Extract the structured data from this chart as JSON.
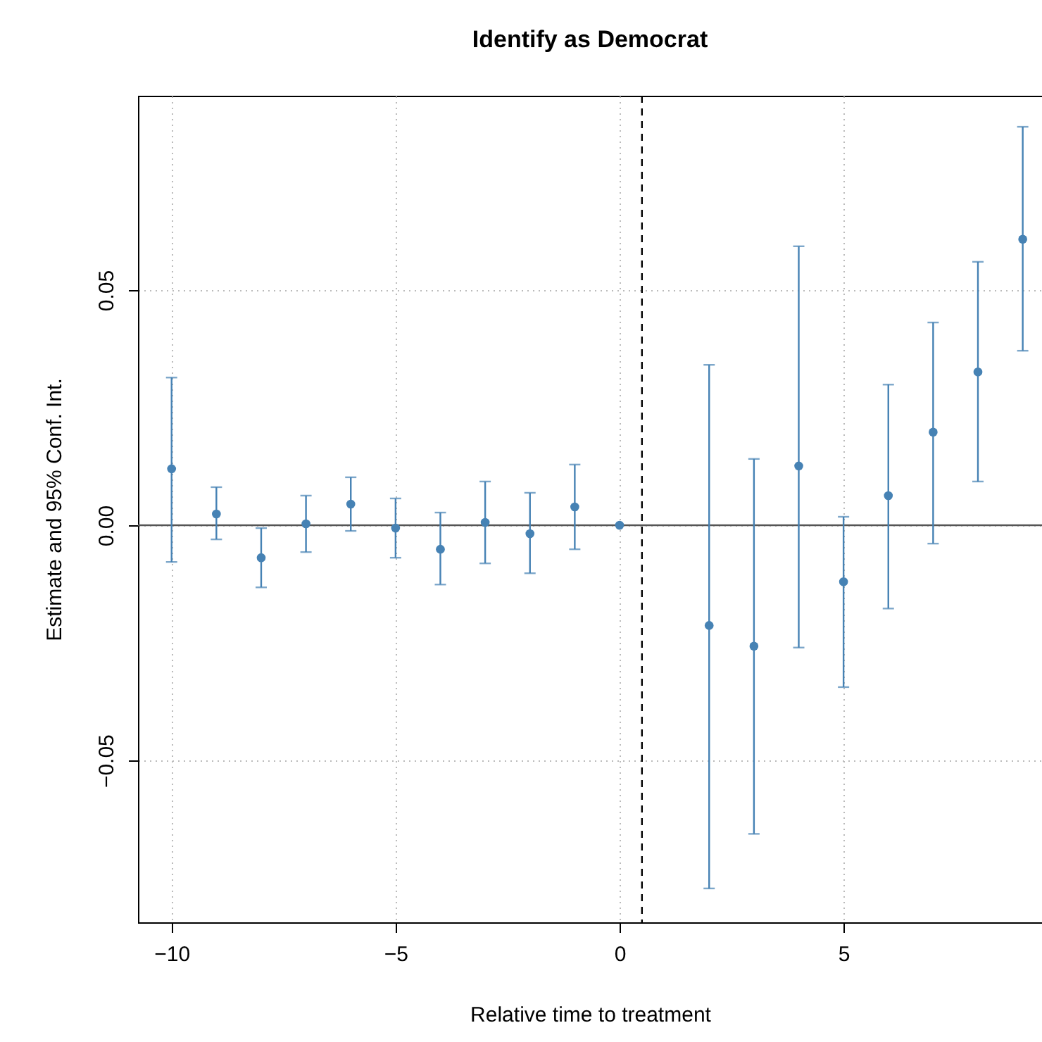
{
  "chart_data": {
    "type": "scatter",
    "title": "Identify as Democrat",
    "xlabel": "Relative time to treatment",
    "ylabel": "Estimate and 95% Conf. Int.",
    "x": [
      -10,
      -9,
      -8,
      -7,
      -6,
      -5,
      -4,
      -3,
      -2,
      -1,
      0,
      2,
      3,
      4,
      5,
      6,
      7,
      8,
      9
    ],
    "series": [
      {
        "color": "#4682b4",
        "values": [
          0.012,
          0.0024,
          -0.0069,
          0.0003,
          0.0045,
          -0.0006,
          -0.0051,
          0.0006,
          -0.0018,
          0.0039,
          0,
          -0.0213,
          -0.0257,
          0.0126,
          -0.012,
          0.0063,
          0.0198,
          0.0326,
          0.0608
        ],
        "errors": [
          [
            -0.0078,
            0.0314
          ],
          [
            -0.003,
            0.0081
          ],
          [
            -0.0132,
            -0.0006
          ],
          [
            -0.0057,
            0.0063
          ],
          [
            -0.0012,
            0.0102
          ],
          [
            -0.0069,
            0.0057
          ],
          [
            -0.0126,
            0.0027
          ],
          [
            -0.0081,
            0.0093
          ],
          [
            -0.0102,
            0.0069
          ],
          [
            -0.0051,
            0.0129
          ],
          null,
          [
            -0.0772,
            0.0341
          ],
          [
            -0.0656,
            0.0141
          ],
          [
            -0.026,
            0.0593
          ],
          [
            -0.0344,
            0.0018
          ],
          [
            -0.0177,
            0.0299
          ],
          [
            -0.0039,
            0.0431
          ],
          [
            0.0093,
            0.056
          ],
          [
            0.0371,
            0.0847
          ]
        ]
      }
    ],
    "xlim": [
      -10.75,
      9.43
    ],
    "ylim": [
      -0.0844,
      0.0913
    ],
    "xticks": [
      {
        "value": -10,
        "label": "−10"
      },
      {
        "value": -5,
        "label": "−5"
      },
      0,
      5
    ],
    "yticks": [
      {
        "value": -0.05,
        "label": "−0.05"
      },
      {
        "value": 0,
        "label": "0.00"
      },
      0.05
    ],
    "ref_lines": [
      {
        "axis": "y",
        "value": 0,
        "color": "#555555",
        "line_style": "solid"
      },
      {
        "axis": "x",
        "value": 0.5,
        "color": "#000000",
        "line_style": "dashed"
      }
    ],
    "grid": true,
    "marker": "circle"
  }
}
